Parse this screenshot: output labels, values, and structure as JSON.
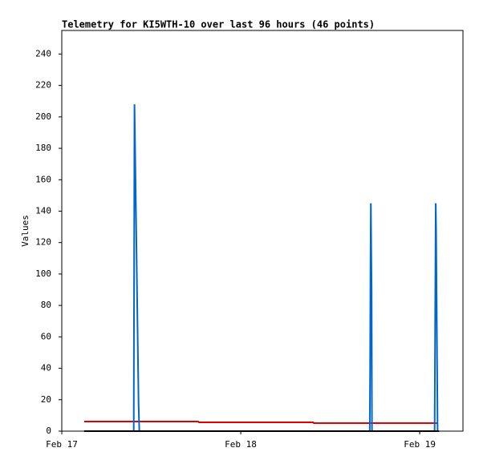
{
  "chart_data": {
    "type": "line",
    "title": "Telemetry for KI5WTH-10 over last 96 hours (46 points)",
    "y_label": "Values",
    "xlim": [
      0,
      53.8
    ],
    "xticks": [
      {
        "value": 0,
        "label": "Feb 17"
      },
      {
        "value": 24,
        "label": "Feb 18"
      },
      {
        "value": 48,
        "label": "Feb 19"
      }
    ],
    "ylim": [
      0,
      255
    ],
    "yticks": [
      0,
      20,
      40,
      60,
      80,
      100,
      120,
      140,
      160,
      180,
      200,
      220,
      240
    ],
    "series": [
      {
        "color": "#e00000",
        "x": [
          3.0,
          18.3,
          18.4,
          33.7,
          33.8,
          50.4
        ],
        "values": [
          6.1,
          6.1,
          5.6,
          5.6,
          5.1,
          5.1
        ]
      },
      {
        "color": "#0066cc",
        "x": [
          3.0,
          9.65,
          9.7,
          9.75,
          9.8,
          9.9,
          10.0,
          10.1,
          10.2,
          10.3,
          10.4,
          41.3,
          41.35,
          41.4,
          41.45,
          41.55,
          41.6,
          50.0,
          50.05,
          50.1,
          50.15,
          50.2,
          50.3,
          50.4
        ],
        "values": [
          0,
          0,
          104,
          208,
          191,
          156,
          122,
          87,
          52,
          17,
          0,
          0,
          40,
          104,
          145,
          88,
          0,
          0,
          48,
          97,
          145,
          128,
          64,
          0
        ]
      },
      {
        "color": "#000000",
        "x": [
          3.0,
          50.6
        ],
        "values": [
          0,
          0
        ]
      }
    ]
  }
}
